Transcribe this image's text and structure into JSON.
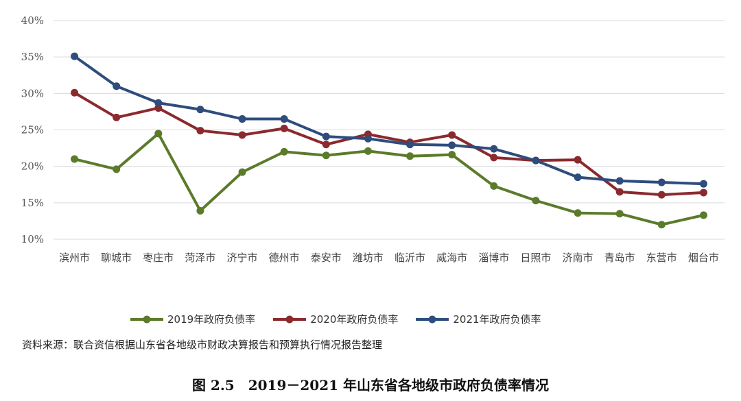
{
  "chart_data": {
    "type": "line",
    "categories": [
      "滨州市",
      "聊城市",
      "枣庄市",
      "菏泽市",
      "济宁市",
      "德州市",
      "泰安市",
      "潍坊市",
      "临沂市",
      "威海市",
      "淄博市",
      "日照市",
      "济南市",
      "青岛市",
      "东营市",
      "烟台市"
    ],
    "series": [
      {
        "name": "2019年政府负债率",
        "color": "#5b7b2a",
        "values": [
          21.0,
          19.6,
          24.5,
          13.9,
          19.2,
          22.0,
          21.5,
          22.1,
          21.4,
          21.6,
          17.3,
          15.3,
          13.6,
          13.5,
          12.0,
          13.3
        ]
      },
      {
        "name": "2020年政府负债率",
        "color": "#8b2a2e",
        "values": [
          30.1,
          26.7,
          28.0,
          24.9,
          24.3,
          25.2,
          23.0,
          24.4,
          23.3,
          24.3,
          21.2,
          20.8,
          20.9,
          16.5,
          16.1,
          16.4
        ]
      },
      {
        "name": "2021年政府负债率",
        "color": "#2e4d7d",
        "values": [
          35.1,
          31.0,
          28.7,
          27.8,
          26.5,
          26.5,
          24.1,
          23.8,
          23.0,
          22.9,
          22.4,
          20.8,
          18.5,
          18.0,
          17.8,
          17.6
        ]
      }
    ],
    "ylim": [
      10,
      40
    ],
    "yticks": [
      "10%",
      "15%",
      "20%",
      "25%",
      "30%",
      "35%",
      "40%"
    ],
    "grid": true,
    "legend_position": "bottom"
  },
  "source_text": "资料来源：联合资信根据山东省各地级市财政决算报告和预算执行情况报告整理",
  "figure_title": "图 2.5　2019－2021 年山东省各地级市政府负债率情况"
}
